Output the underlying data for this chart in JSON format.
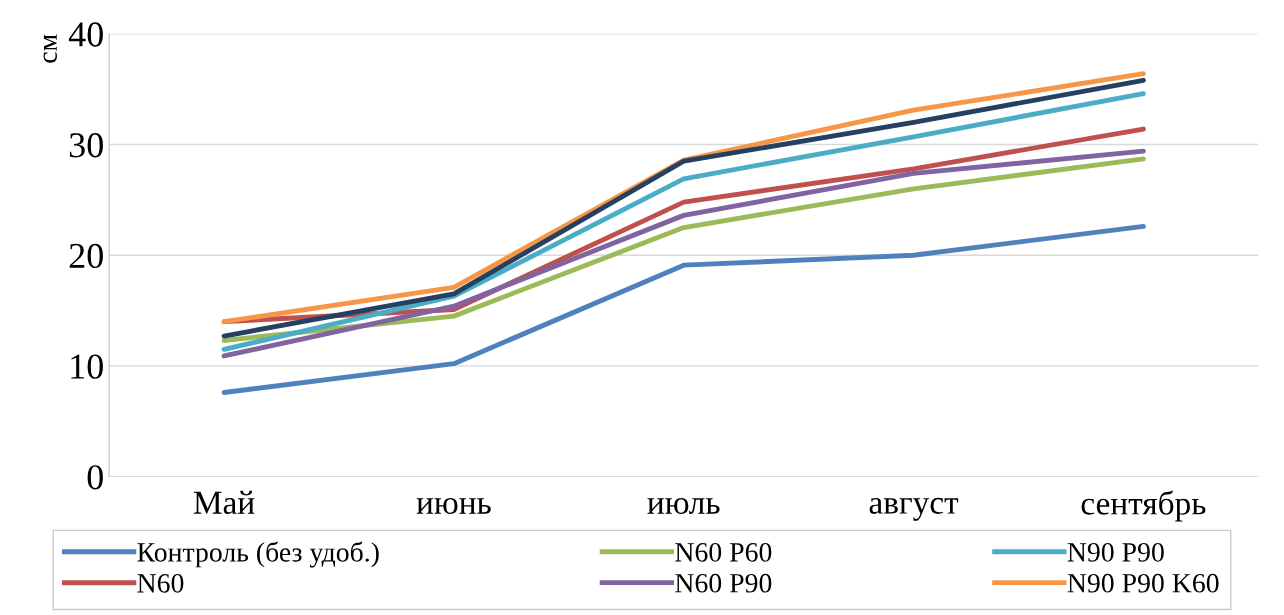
{
  "chart_data": {
    "type": "line",
    "ylabel": "см",
    "categories": [
      "Май",
      "июнь",
      "июль",
      "август",
      "сентябрь"
    ],
    "series": [
      {
        "name": "Контроль (без удоб.)",
        "color": "#4f81bd",
        "values": [
          7.6,
          10.2,
          19.1,
          20.0,
          22.6
        ]
      },
      {
        "name": "N60",
        "color": "#c0504d",
        "values": [
          14.0,
          15.1,
          24.8,
          27.8,
          31.4
        ]
      },
      {
        "name": "N60 P60",
        "color": "#9bbb59",
        "values": [
          12.3,
          14.5,
          22.5,
          26.0,
          28.7
        ]
      },
      {
        "name": "N60 P90",
        "color": "#8064a2",
        "values": [
          10.9,
          15.4,
          23.6,
          27.4,
          29.4
        ]
      },
      {
        "name": "N90 P90",
        "color": "#4bacc6",
        "values": [
          11.5,
          16.3,
          26.9,
          30.7,
          34.6
        ]
      },
      {
        "name": "N90 P90 K60",
        "color": "#f79646",
        "values": [
          14.0,
          17.1,
          28.6,
          33.1,
          36.4
        ]
      },
      {
        "color": "#254061",
        "values": [
          12.7,
          16.5,
          28.5,
          32.0,
          35.8
        ]
      }
    ],
    "ylim": [
      0,
      40
    ],
    "yticks": [
      0,
      10,
      20,
      30,
      40
    ],
    "grid": "y",
    "legend": "bottom",
    "marker": "none",
    "line_style": "solid"
  }
}
